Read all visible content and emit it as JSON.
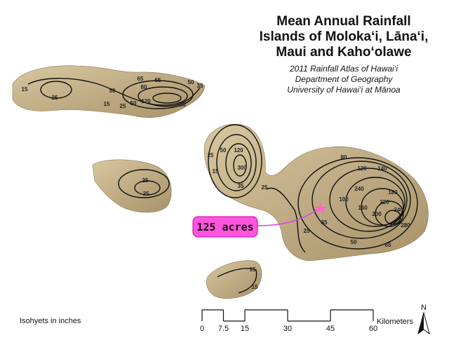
{
  "title": [
    "Mean Annual Rainfall",
    "Islands of Moloka‘i, Lāna‘i,",
    "Maui and Kaho‘olawe"
  ],
  "credits": [
    "2011 Rainfall Atlas of Hawai‘i",
    "Department of Geography",
    "University of Hawai‘i at Mānoa"
  ],
  "callout": "125 acres",
  "legend": "Isohyets in inches",
  "scale_bar": {
    "ticks": [
      0,
      7.5,
      15,
      30,
      45,
      60
    ],
    "unit": "Kilometers"
  },
  "north": "N",
  "contour_labels": [
    "15",
    "25",
    "50",
    "65",
    "80",
    "65",
    "50",
    "35",
    "100",
    "120",
    "50",
    "25",
    "15",
    "25",
    "35",
    "50",
    "120",
    "300",
    "25",
    "15",
    "35",
    "25",
    "80",
    "120",
    "140",
    "240",
    "180",
    "220",
    "160",
    "200",
    "240",
    "280",
    "100",
    "50",
    "65",
    "35",
    "25",
    "15",
    "15"
  ]
}
